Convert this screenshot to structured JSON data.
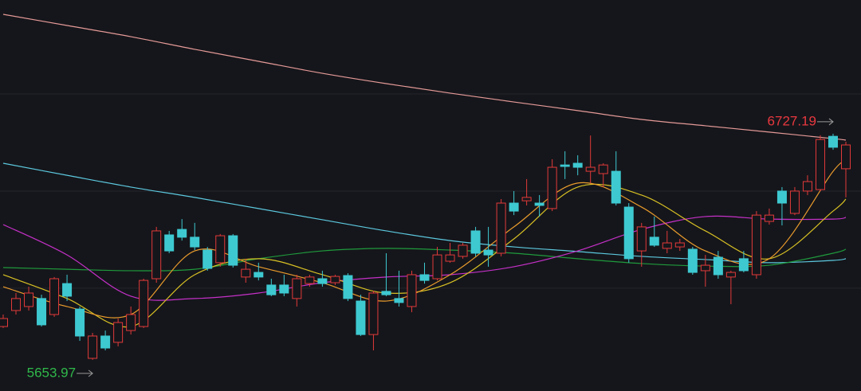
{
  "chart_data": {
    "type": "candlestick",
    "ylim": [
      5506,
      7362
    ],
    "yticks": [
      5994,
      6455,
      6916
    ],
    "grid": true,
    "up_color": "#e23a3a",
    "down_color": "#3ec9d1",
    "open": [
      5812,
      5888,
      5907,
      5945,
      5869,
      6016,
      5895,
      5661,
      5767,
      5737,
      5793,
      5812,
      6039,
      6247,
      6273,
      6236,
      6175,
      6115,
      6243,
      6047,
      6069,
      6009,
      6009,
      5945,
      6016,
      6039,
      6020,
      6054,
      5933,
      5774,
      5979,
      5945,
      5907,
      6058,
      6039,
      6122,
      6145,
      6266,
      6175,
      6160,
      6398,
      6409,
      6398,
      6372,
      6579,
      6587,
      6549,
      6538,
      6549,
      6379,
      6171,
      6236,
      6183,
      6190,
      6179,
      6077,
      6141,
      6047,
      6134,
      6058,
      6311,
      6455,
      6349,
      6455,
      6462,
      6715,
      6561
    ],
    "high": [
      5869,
      5971,
      6001,
      5963,
      6047,
      6058,
      5907,
      5782,
      5793,
      5850,
      5907,
      6039,
      6285,
      6266,
      6322,
      6304,
      6190,
      6251,
      6251,
      6134,
      6115,
      6039,
      6058,
      6058,
      6058,
      6077,
      6058,
      6065,
      5963,
      5982,
      6160,
      6077,
      6077,
      6115,
      6190,
      6209,
      6209,
      6285,
      6285,
      6417,
      6455,
      6512,
      6436,
      6606,
      6644,
      6625,
      6719,
      6587,
      6644,
      6398,
      6304,
      6334,
      6266,
      6228,
      6190,
      6152,
      6171,
      6077,
      6171,
      6360,
      6372,
      6474,
      6474,
      6530,
      6720,
      6727.19,
      6689
    ],
    "low": [
      5805,
      5869,
      5888,
      5812,
      5858,
      5933,
      5744,
      5653.97,
      5699,
      5718,
      5774,
      5805,
      6020,
      6160,
      6220,
      6175,
      6077,
      6096,
      6092,
      6020,
      6031,
      5956,
      5956,
      5907,
      6001,
      6001,
      6009,
      5933,
      5767,
      5699,
      5956,
      5907,
      5880,
      6016,
      6031,
      6115,
      6134,
      6145,
      6096,
      6145,
      6341,
      6387,
      6334,
      6360,
      6512,
      6530,
      6493,
      6474,
      6387,
      6115,
      6096,
      6190,
      6160,
      6171,
      6058,
      6001,
      6039,
      5918,
      6069,
      6039,
      6296,
      6292,
      6341,
      6436,
      6455,
      6651,
      6425
    ],
    "close": [
      5850,
      5945,
      5971,
      5820,
      6039,
      5956,
      5767,
      5767,
      5710,
      5831,
      5869,
      6031,
      6266,
      6171,
      6236,
      6190,
      6088,
      6243,
      6103,
      6084,
      6047,
      5963,
      5971,
      6039,
      6047,
      6016,
      6050,
      5945,
      5774,
      5971,
      5963,
      5926,
      6058,
      6031,
      6152,
      6152,
      6198,
      6160,
      6152,
      6398,
      6360,
      6425,
      6387,
      6568,
      6572,
      6568,
      6568,
      6579,
      6398,
      6134,
      6285,
      6198,
      6209,
      6209,
      6069,
      6103,
      6058,
      6069,
      6077,
      6341,
      6341,
      6398,
      6455,
      6500,
      6700,
      6663,
      6674
    ],
    "lines": [
      {
        "color": "#e59a98",
        "x": [
          0,
          5,
          10,
          15,
          20,
          25,
          30,
          35,
          40,
          45,
          50,
          55,
          60,
          65,
          66
        ],
        "values": [
          7294,
          7241,
          7188,
          7128,
          7071,
          7014,
          6965,
          6920,
          6878,
          6837,
          6795,
          6765,
          6735,
          6704,
          6697
        ]
      },
      {
        "color": "#5cc8de",
        "x": [
          0,
          5,
          10,
          15,
          20,
          25,
          30,
          35,
          40,
          45,
          50,
          55,
          60,
          65,
          66
        ],
        "values": [
          6587,
          6530,
          6474,
          6425,
          6372,
          6319,
          6266,
          6220,
          6190,
          6168,
          6145,
          6130,
          6115,
          6126,
          6134
        ]
      },
      {
        "color": "#1f9a3c",
        "x": [
          0,
          5,
          10,
          15,
          20,
          25,
          30,
          35,
          40,
          45,
          50,
          55,
          60,
          65,
          66
        ],
        "values": [
          6092,
          6084,
          6077,
          6084,
          6134,
          6171,
          6183,
          6175,
          6160,
          6134,
          6111,
          6099,
          6103,
          6160,
          6179
        ]
      },
      {
        "color": "#c530c8",
        "x": [
          0,
          5,
          10,
          15,
          20,
          25,
          30,
          35,
          40,
          45,
          50,
          55,
          60,
          65,
          66
        ],
        "values": [
          6296,
          6152,
          5956,
          5945,
          5971,
          6020,
          6047,
          6058,
          6096,
          6171,
          6273,
          6334,
          6322,
          6322,
          6330
        ]
      },
      {
        "color": "#d8c024",
        "x": [
          0,
          5,
          10,
          15,
          20,
          25,
          30,
          35,
          40,
          45,
          50,
          55,
          60,
          65,
          66
        ],
        "values": [
          6058,
          5945,
          5812,
          6058,
          6134,
          6058,
          5971,
          6020,
          6228,
          6474,
          6436,
          6266,
          6134,
          6360,
          6417
        ]
      },
      {
        "color": "#e89a2c",
        "x": [
          0,
          5,
          10,
          15,
          20,
          25,
          30,
          35,
          40,
          45,
          50,
          55,
          60,
          65,
          66
        ],
        "values": [
          6001,
          5907,
          5869,
          6171,
          6096,
          6020,
          5933,
          6058,
          6285,
          6493,
          6379,
          6171,
          6134,
          6549,
          6587
        ]
      }
    ],
    "high_label_color": "#e8383f",
    "low_label_color": "#2fb84a"
  }
}
